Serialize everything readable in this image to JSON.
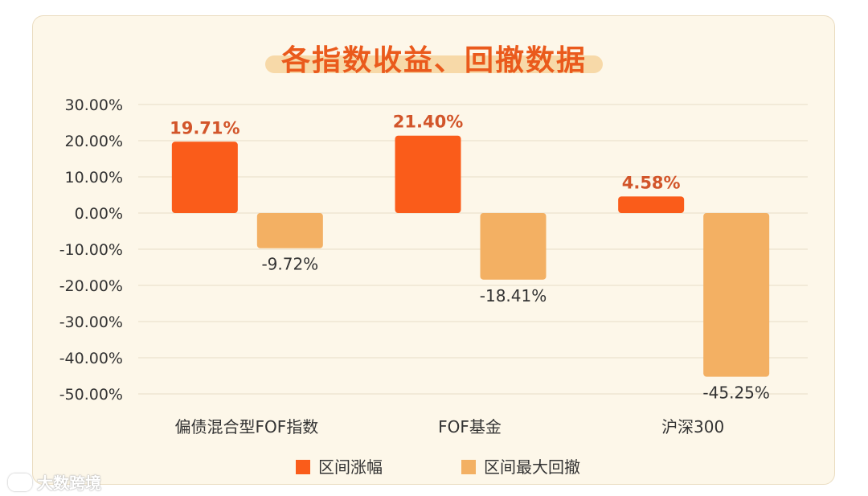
{
  "watermark": "大数跨境",
  "colors": {
    "gain": "#fa5c1a",
    "drawdown": "#f3b063",
    "gain_label": "#d2552a",
    "text": "#333333",
    "grid": "#e6dcc8"
  },
  "chart_data": {
    "type": "bar",
    "title": "各指数收益、回撤数据",
    "categories": [
      "偏债混合型FOF指数",
      "FOF基金",
      "沪深300"
    ],
    "series": [
      {
        "name": "区间涨幅",
        "values": [
          19.71,
          21.4,
          4.58
        ],
        "labels": [
          "19.71%",
          "21.40%",
          "4.58%"
        ]
      },
      {
        "name": "区间最大回撤",
        "values": [
          -9.72,
          -18.41,
          -45.25
        ],
        "labels": [
          "-9.72%",
          "-18.41%",
          "-45.25%"
        ]
      }
    ],
    "ylim": [
      -50,
      30
    ],
    "yticks": [
      30,
      20,
      10,
      0,
      -10,
      -20,
      -30,
      -40,
      -50
    ],
    "ytick_labels": [
      "30.00%",
      "20.00%",
      "10.00%",
      "0.00%",
      "-10.00%",
      "-20.00%",
      "-30.00%",
      "-40.00%",
      "-50.00%"
    ],
    "grid": true,
    "legend": "bottom"
  }
}
